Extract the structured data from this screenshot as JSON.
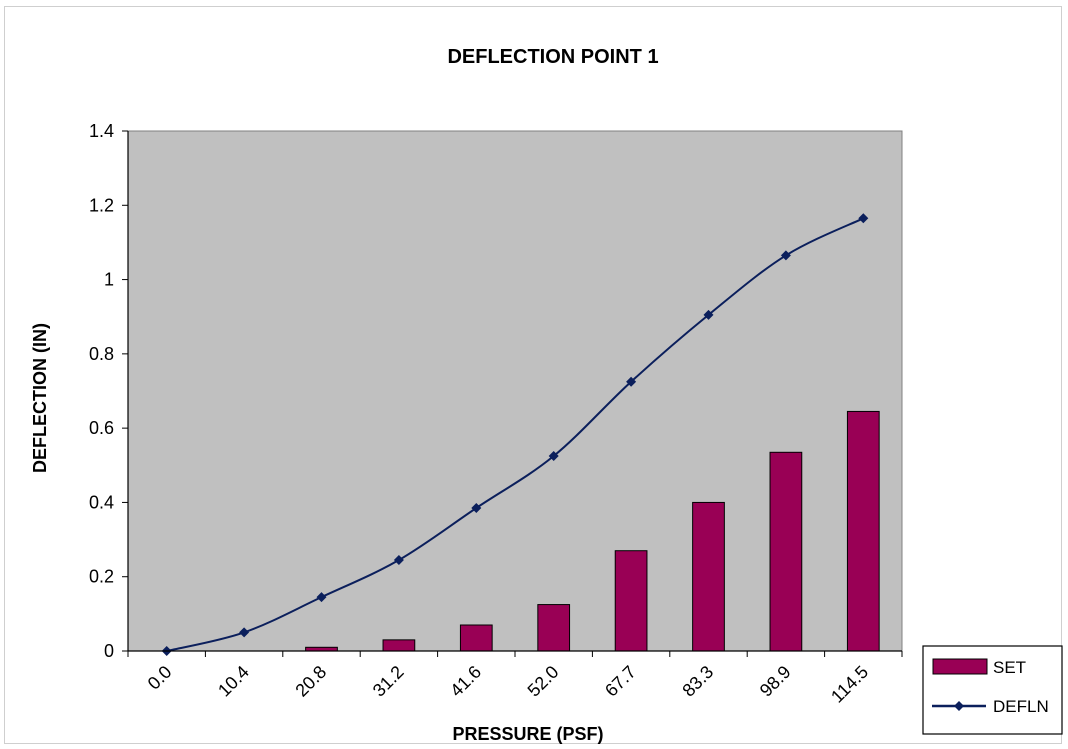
{
  "chart_data": {
    "type": "bar",
    "title": "DEFLECTION  POINT 1",
    "xlabel": "PRESSURE  (PSF)",
    "ylabel": "DEFLECTION  (IN)",
    "categories": [
      "0.0",
      "10.4",
      "20.8",
      "31.2",
      "41.6",
      "52.0",
      "67.7",
      "83.3",
      "98.9",
      "114.5"
    ],
    "ylim": [
      0,
      1.4
    ],
    "yticks": [
      "0",
      "0.2",
      "0.4",
      "0.6",
      "0.8",
      "1",
      "1.2",
      "1.4"
    ],
    "ytick_values": [
      0,
      0.2,
      0.4,
      0.6,
      0.8,
      1.0,
      1.2,
      1.4
    ],
    "grid": false,
    "legend_position": "bottom-right",
    "plot_background": "#c0c0c0",
    "series": [
      {
        "name": "SET",
        "type": "bar",
        "color": "#990055",
        "values": [
          0,
          0,
          0.01,
          0.03,
          0.07,
          0.125,
          0.27,
          0.4,
          0.535,
          0.645
        ]
      },
      {
        "name": "DEFLN",
        "type": "line",
        "marker": "diamond",
        "color": "#0b1f5c",
        "values": [
          0,
          0.05,
          0.145,
          0.245,
          0.385,
          0.525,
          0.725,
          0.905,
          1.065,
          1.165
        ]
      }
    ]
  }
}
